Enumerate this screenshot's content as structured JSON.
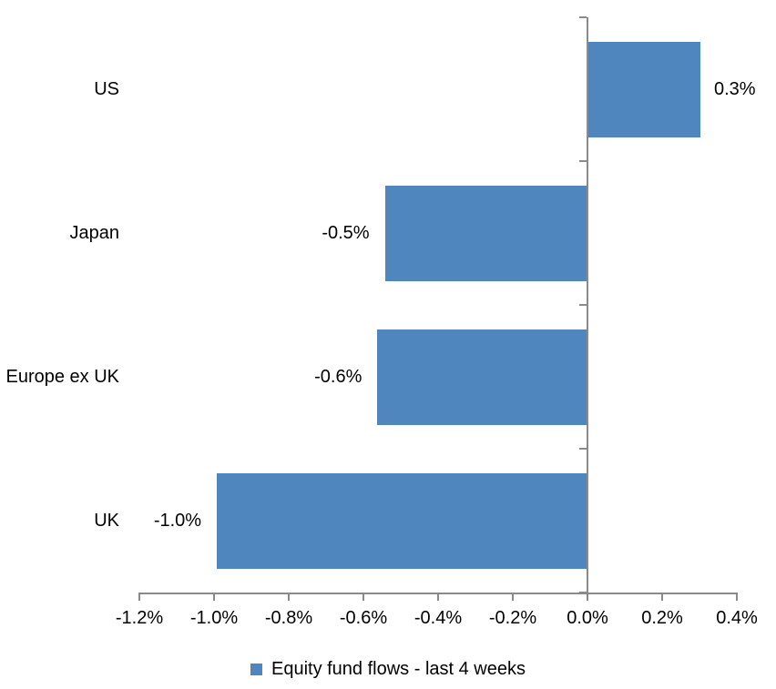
{
  "chart_data": {
    "type": "bar",
    "orientation": "horizontal",
    "title": "",
    "categories": [
      "US",
      "Japan",
      "Europe ex UK",
      "UK"
    ],
    "series": [
      {
        "name": "Equity fund flows - last 4 weeks",
        "values": [
          0.3,
          -0.5,
          -0.6,
          -1.0
        ],
        "plotted_values": [
          0.3,
          -0.54,
          -0.56,
          -0.99
        ],
        "data_labels": [
          "0.3%",
          "-0.5%",
          "-0.6%",
          "-1.0%"
        ],
        "color": "#4E86BD"
      }
    ],
    "x_axis": {
      "unit": "%",
      "min": -1.2,
      "max": 0.4,
      "tick_step": 0.2,
      "tick_values": [
        -1.2,
        -1.0,
        -0.8,
        -0.6,
        -0.4,
        -0.2,
        0.0,
        0.2,
        0.4
      ],
      "tick_labels": [
        "-1.2%",
        "-1.0%",
        "-0.8%",
        "-0.6%",
        "-0.4%",
        "-0.2%",
        "0.0%",
        "0.2%",
        "0.4%"
      ]
    },
    "grid": false,
    "legend_position": "bottom-center",
    "legend": [
      {
        "label": "Equity fund flows - last 4 weeks",
        "color": "#4E86BD"
      }
    ],
    "colors": {
      "bar": "#4E86BD",
      "axis": "#8A8A8A",
      "text": "#000000",
      "background": "#FFFFFF"
    }
  }
}
